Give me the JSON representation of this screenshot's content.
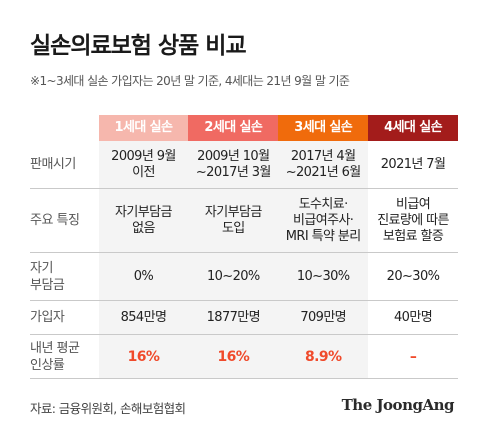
{
  "title": "실손의료보험 상품 비교",
  "note": "※1~3세대 실손 가입자는 20년 말 기준, 4세대는 21년 9월 말 기준",
  "columns": [
    "1세대 실손",
    "2세대 실손",
    "3세대 실손",
    "4세대 실손"
  ],
  "column_colors": [
    "#f6b7ad",
    "#f06a62",
    "#f06b0c",
    "#a31c1b"
  ],
  "rows": [
    {
      "label": "판매시기",
      "values": [
        "2009년 9월\n이전",
        "2009년 10월\n~2017년 3월",
        "2017년 4월\n~2021년 6월",
        "2021년 7월"
      ]
    },
    {
      "label": "주요 특징",
      "values": [
        "자기부담금\n없음",
        "자기부담금\n도입",
        "도수치료·\n비급여주사·\nMRI 특약 분리",
        "비급여\n진료량에 따른\n보험료 할증"
      ]
    },
    {
      "label": "자기\n부담금",
      "values": [
        "0%",
        "10~20%",
        "10~30%",
        "20~30%"
      ]
    },
    {
      "label": "가입자",
      "values": [
        "854만명",
        "1877만명",
        "709만명",
        "40만명"
      ]
    },
    {
      "label": "내년 평균\n인상률",
      "values": [
        "16%",
        "16%",
        "8.9%",
        "–"
      ]
    }
  ],
  "source": "자료: 금융위원회, 손해보험협회",
  "logo": "The JoongAng"
}
